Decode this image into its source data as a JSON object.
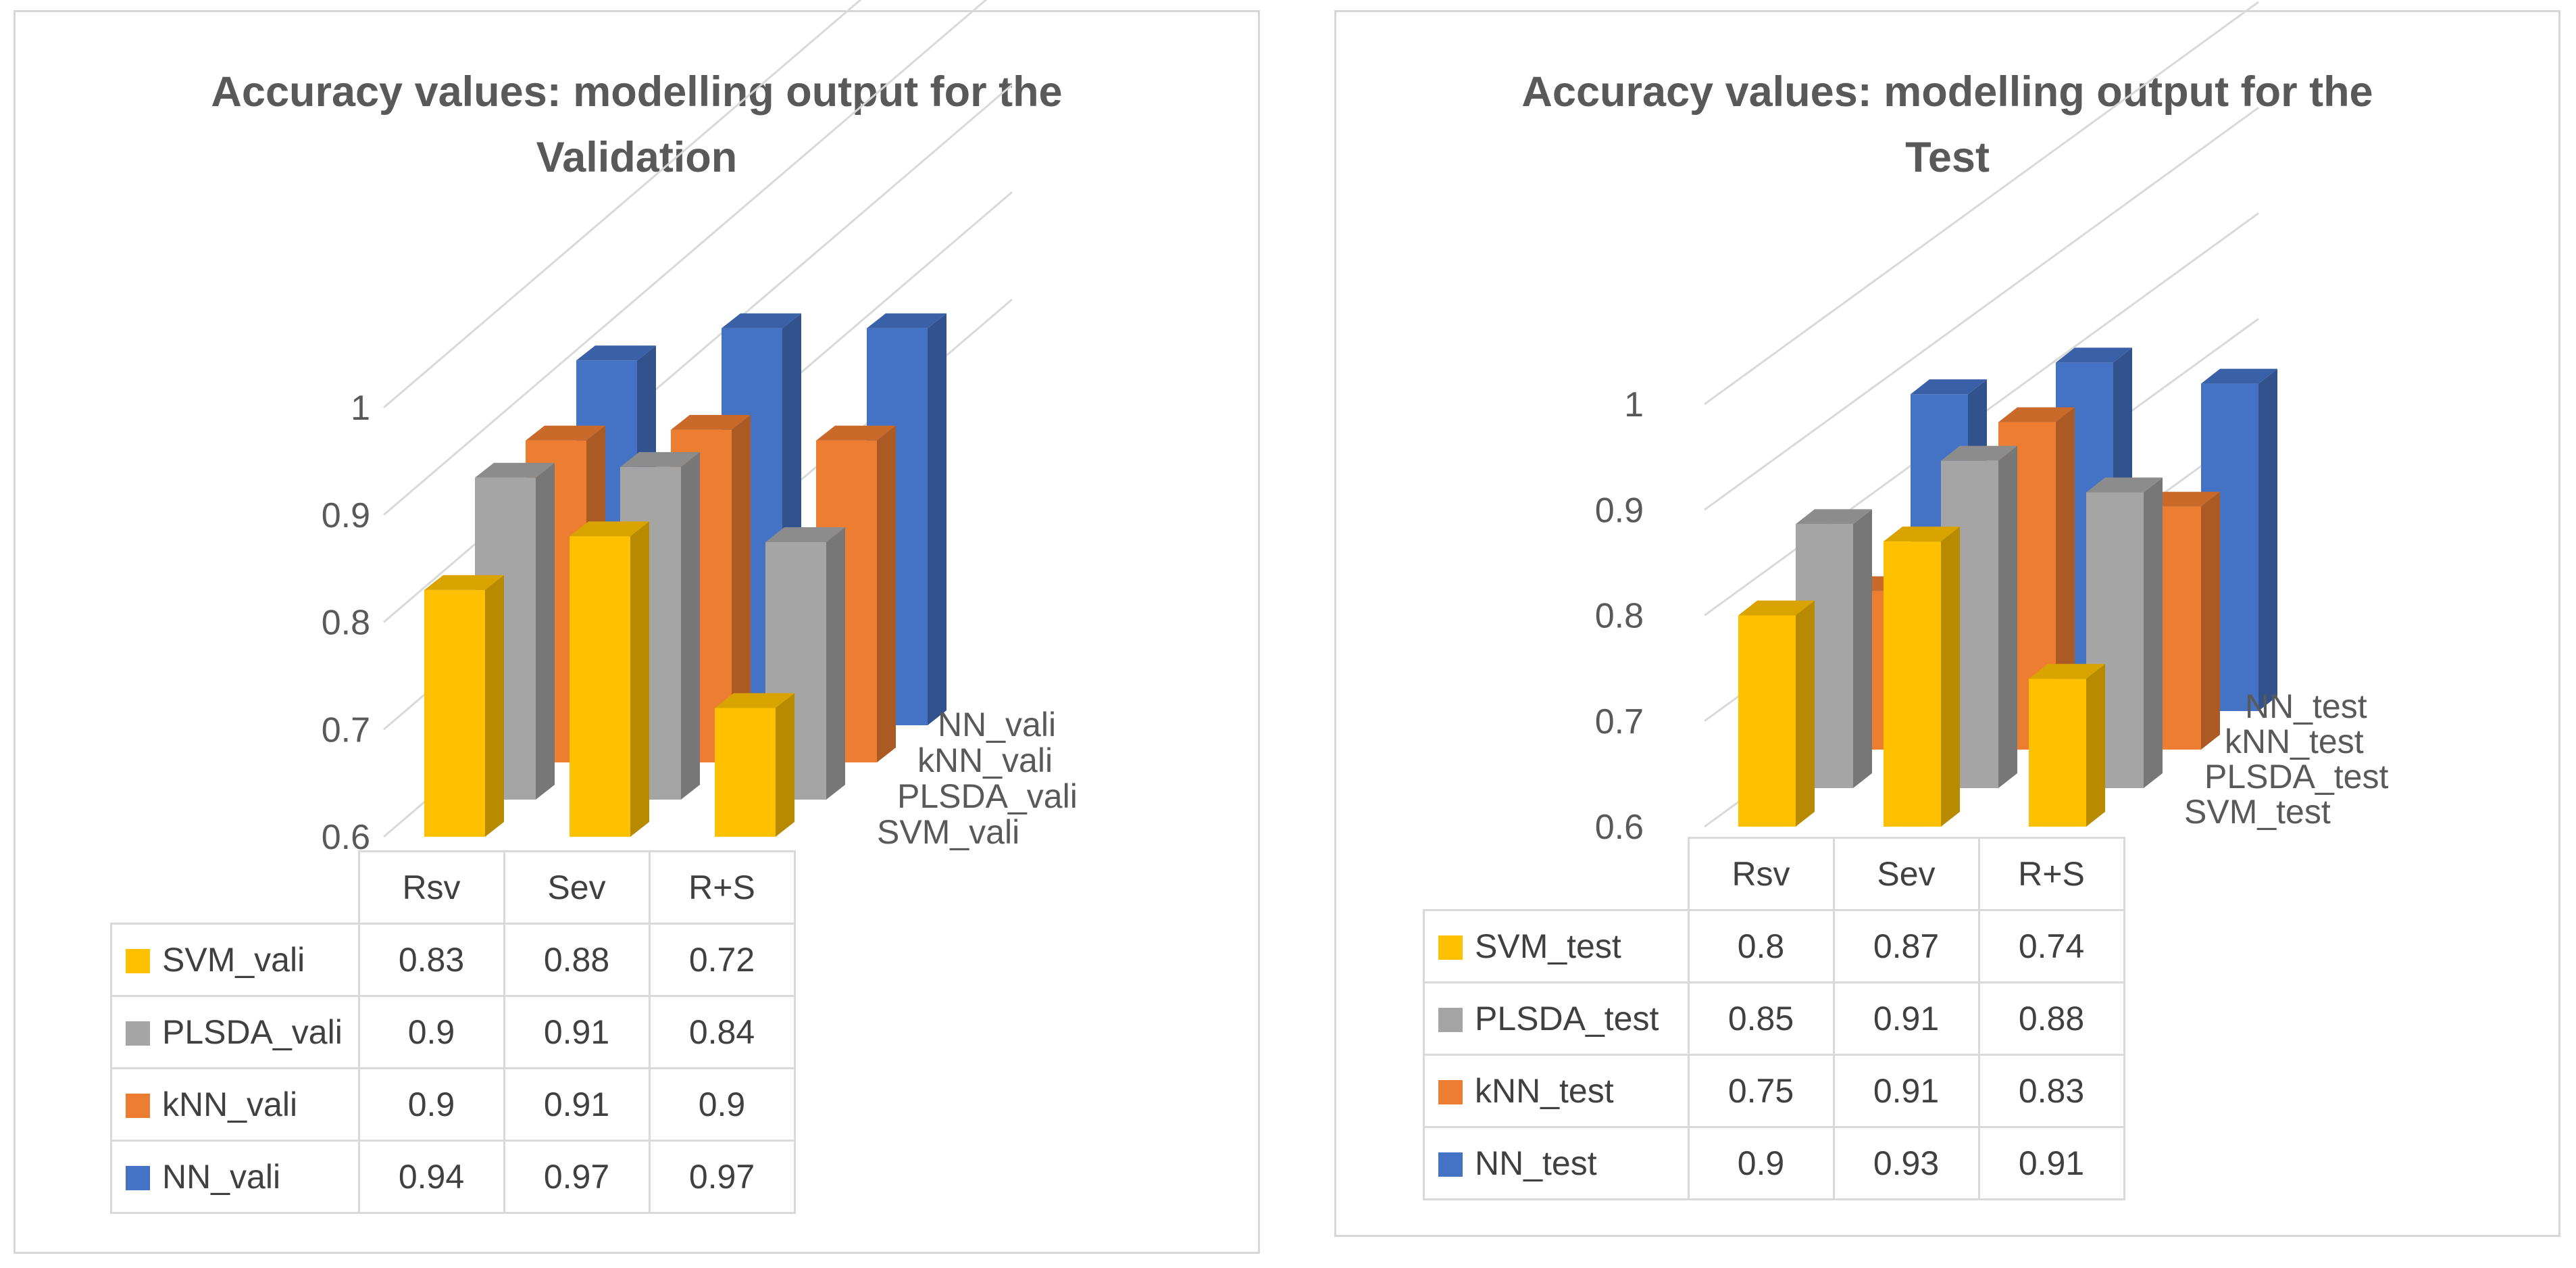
{
  "categories": [
    "Rsv",
    "Sev",
    "R+S"
  ],
  "colors": {
    "SVM": "#FFC000",
    "PLSDA": "#A5A5A5",
    "kNN": "#ED7D31",
    "NN": "#4472C4",
    "grid": "#d9d9d9",
    "text": "#595959"
  },
  "charts": [
    {
      "title": "Accuracy values: modelling output for the Validation",
      "title_lines": [
        "Accuracy values: modelling output for the",
        "Validation"
      ],
      "series": [
        {
          "name": "SVM_vali",
          "values": [
            0.83,
            0.88,
            0.72
          ]
        },
        {
          "name": "PLSDA_vali",
          "values": [
            0.9,
            0.91,
            0.84
          ]
        },
        {
          "name": "kNN_vali",
          "values": [
            0.9,
            0.91,
            0.9
          ]
        },
        {
          "name": "NN_vali",
          "values": [
            0.94,
            0.97,
            0.97
          ]
        }
      ]
    },
    {
      "title": "Accuracy values: modelling output for the Test",
      "title_lines": [
        "Accuracy values: modelling output for the",
        "Test"
      ],
      "series": [
        {
          "name": "SVM_test",
          "values": [
            0.8,
            0.87,
            0.74
          ]
        },
        {
          "name": "PLSDA_test",
          "values": [
            0.85,
            0.91,
            0.88
          ]
        },
        {
          "name": "kNN_test",
          "values": [
            0.75,
            0.91,
            0.83
          ]
        },
        {
          "name": "NN_test",
          "values": [
            0.9,
            0.93,
            0.91
          ]
        }
      ]
    }
  ],
  "chart_data": [
    {
      "type": "bar",
      "title": "Accuracy values: modelling output for the Validation",
      "categories": [
        "Rsv",
        "Sev",
        "R+S"
      ],
      "series": [
        {
          "name": "SVM_vali",
          "values": [
            0.83,
            0.88,
            0.72
          ]
        },
        {
          "name": "PLSDA_vali",
          "values": [
            0.9,
            0.91,
            0.84
          ]
        },
        {
          "name": "kNN_vali",
          "values": [
            0.9,
            0.91,
            0.9
          ]
        },
        {
          "name": "NN_vali",
          "values": [
            0.94,
            0.97,
            0.97
          ]
        }
      ],
      "ylim": [
        0.6,
        1.0
      ],
      "yticks": [
        "0.6",
        "0.7",
        "0.8",
        "0.9",
        "1"
      ],
      "style": "3D clustered column with data table"
    },
    {
      "type": "bar",
      "title": "Accuracy values: modelling output for the Test",
      "categories": [
        "Rsv",
        "Sev",
        "R+S"
      ],
      "series": [
        {
          "name": "SVM_test",
          "values": [
            0.8,
            0.87,
            0.74
          ]
        },
        {
          "name": "PLSDA_test",
          "values": [
            0.85,
            0.91,
            0.88
          ]
        },
        {
          "name": "kNN_test",
          "values": [
            0.75,
            0.91,
            0.83
          ]
        },
        {
          "name": "NN_test",
          "values": [
            0.9,
            0.93,
            0.91
          ]
        }
      ],
      "ylim": [
        0.6,
        1.0
      ],
      "yticks": [
        "0.6",
        "0.7",
        "0.8",
        "0.9",
        "1"
      ],
      "style": "3D clustered column with data table"
    }
  ]
}
